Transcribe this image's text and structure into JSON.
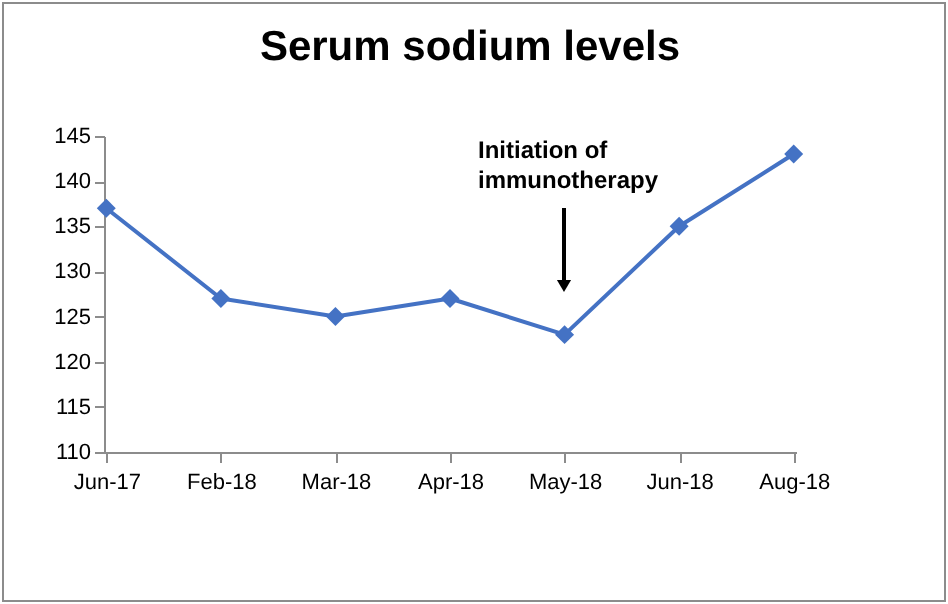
{
  "chart_data": {
    "type": "line",
    "title": "Serum sodium levels",
    "categories": [
      "Jun-17",
      "Feb-18",
      "Mar-18",
      "Apr-18",
      "May-18",
      "Jun-18",
      "Aug-18"
    ],
    "series": [
      {
        "color": "#4472c4",
        "values": [
          137,
          127,
          125,
          127,
          123,
          135,
          143
        ]
      }
    ],
    "ylim": [
      110,
      145
    ],
    "yticks": [
      110,
      115,
      120,
      125,
      130,
      135,
      140,
      145
    ],
    "marker": "diamond",
    "line_style": "solid",
    "legend": false,
    "annotations": [
      "Initiation of\nimmunotherapy"
    ]
  }
}
